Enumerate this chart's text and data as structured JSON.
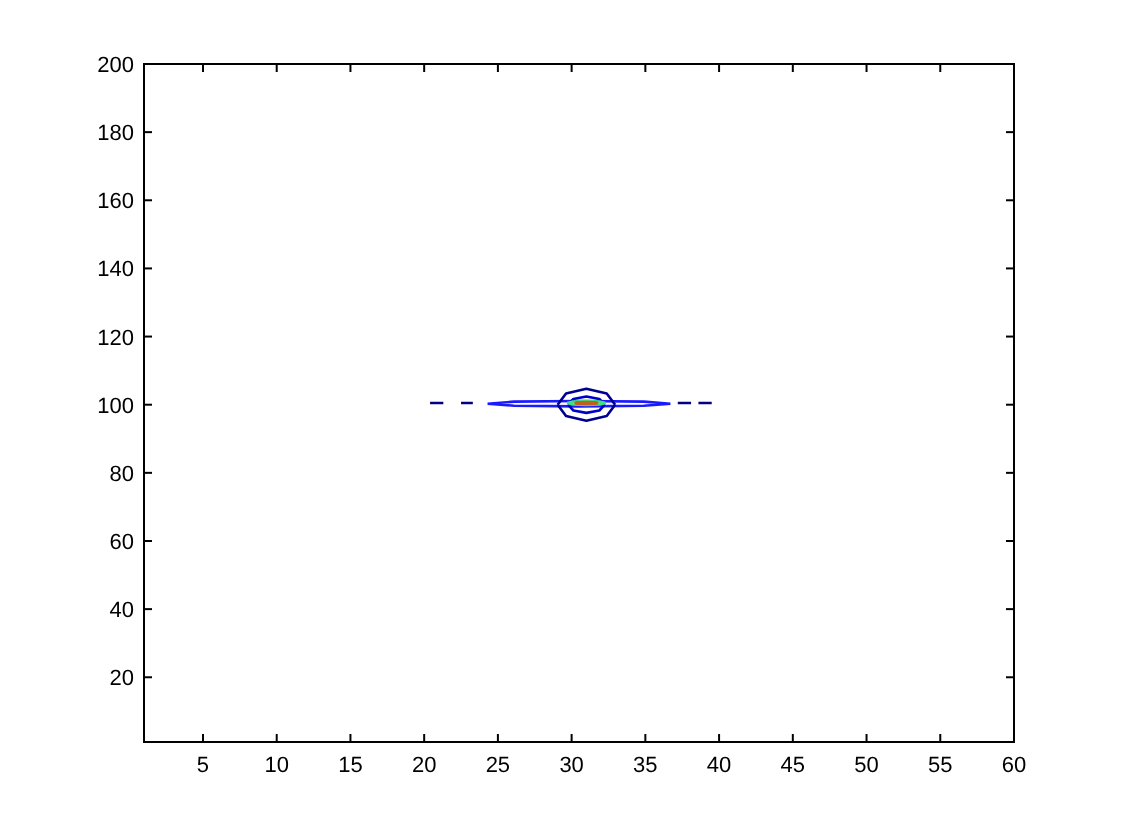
{
  "chart_data": {
    "type": "line",
    "xlim": [
      1,
      60
    ],
    "ylim": [
      1,
      200
    ],
    "xticks": [
      5,
      10,
      15,
      20,
      25,
      30,
      35,
      40,
      45,
      50,
      55,
      60
    ],
    "yticks": [
      20,
      40,
      60,
      80,
      100,
      120,
      140,
      160,
      180,
      200
    ],
    "grid": false,
    "marker": "none",
    "line_style": "solid",
    "series": [
      {
        "color": "#1a1aff",
        "x": [
          24.3,
          26.1,
          30.5,
          34.9,
          36.7,
          null,
          24.3,
          26.1,
          30.5,
          34.9,
          36.7
        ],
        "values": [
          100.3,
          100.9,
          101.1,
          100.9,
          100.3,
          null,
          100.3,
          99.7,
          99.5,
          99.7,
          100.3
        ]
      },
      {
        "color": "#00008f",
        "x": [
          29.05,
          29.62,
          31,
          32.38,
          32.95,
          null,
          29.05,
          29.62,
          31,
          32.38,
          32.95
        ],
        "values": [
          100,
          103.3,
          104.7,
          103.3,
          100,
          null,
          100,
          96.7,
          95.3,
          96.7,
          100
        ]
      },
      {
        "color": "#0000c8",
        "x": [
          29.75,
          30.12,
          31,
          31.88,
          32.25,
          null,
          29.75,
          30.12,
          31,
          31.88,
          32.25
        ],
        "values": [
          100,
          101.7,
          102.4,
          101.7,
          100,
          null,
          100,
          98.3,
          97.6,
          98.3,
          100
        ]
      },
      {
        "color": "#40e080",
        "x": [
          29.7,
          30.1,
          31,
          31.9,
          32.3,
          null,
          29.7,
          30.1,
          31,
          31.9,
          32.3
        ],
        "values": [
          100.5,
          100.9,
          101.1,
          100.9,
          100.5,
          null,
          100.5,
          100.1,
          99.9,
          100.1,
          100.5
        ]
      },
      {
        "color": "#c06020",
        "x": [
          30.2,
          30.4,
          31,
          31.6,
          31.8,
          null,
          30.2,
          30.4,
          31,
          31.6,
          31.8
        ],
        "values": [
          100.5,
          100.7,
          100.8,
          100.7,
          100.5,
          null,
          100.5,
          100.3,
          100.2,
          100.3,
          100.5
        ]
      },
      {
        "color": "#000080",
        "x": [
          20.4,
          21.3,
          null,
          22.5,
          23.3,
          null,
          37.2,
          38.1,
          null,
          38.6,
          39.5
        ],
        "values": [
          100.5,
          100.5,
          null,
          100.5,
          100.5,
          null,
          100.5,
          100.5,
          null,
          100.5,
          100.5
        ]
      }
    ]
  }
}
